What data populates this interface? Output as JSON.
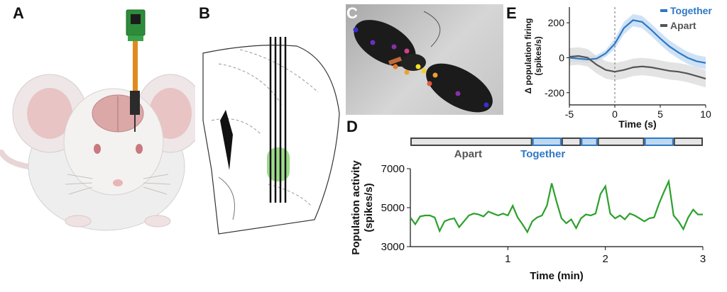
{
  "panels": {
    "a": "A",
    "b": "B",
    "c": "C",
    "d": "D",
    "e": "E"
  },
  "colors": {
    "together": "#2f78c4",
    "apart": "#555555",
    "trace": "#2ca02c",
    "together_fill": "#bfd8f2",
    "apart_fill": "#d9d9d9",
    "roi": "#7ccf63"
  },
  "chart_data": [
    {
      "id": "E",
      "type": "line",
      "xlabel": "Time (s)",
      "ylabel": "Δ population firing (spikes/s)",
      "ylabel_line1": "Δ population firing",
      "ylabel_line2": "(spikes/s)",
      "xlim": [
        -5,
        10
      ],
      "ylim": [
        -270,
        290
      ],
      "xticks": [
        -5,
        0,
        5,
        10
      ],
      "yticks": [
        -200,
        0,
        200
      ],
      "legend_position": "top-right",
      "x": [
        -5,
        -4,
        -3,
        -2,
        -1,
        0,
        1,
        2,
        3,
        4,
        5,
        6,
        7,
        8,
        9,
        10
      ],
      "series": [
        {
          "name": "Together",
          "color": "#2f78c4",
          "values": [
            0,
            -5,
            -10,
            -5,
            25,
            80,
            170,
            215,
            205,
            160,
            110,
            65,
            30,
            0,
            -20,
            -30
          ],
          "band_upper": [
            20,
            15,
            10,
            15,
            45,
            110,
            205,
            250,
            240,
            195,
            145,
            100,
            65,
            35,
            15,
            5
          ],
          "band_lower": [
            -20,
            -25,
            -30,
            -25,
            5,
            50,
            135,
            180,
            170,
            125,
            75,
            30,
            -5,
            -35,
            -55,
            -65
          ]
        },
        {
          "name": "Apart",
          "color": "#555555",
          "values": [
            5,
            10,
            0,
            -40,
            -70,
            -80,
            -70,
            -55,
            -50,
            -55,
            -65,
            -75,
            -80,
            -90,
            -105,
            -120
          ],
          "band_upper": [
            55,
            60,
            50,
            10,
            -20,
            -30,
            -20,
            -5,
            0,
            -5,
            -15,
            -25,
            -30,
            -40,
            -55,
            -70
          ],
          "band_lower": [
            -45,
            -40,
            -50,
            -90,
            -120,
            -130,
            -120,
            -105,
            -100,
            -105,
            -115,
            -125,
            -130,
            -140,
            -155,
            -170
          ]
        }
      ]
    },
    {
      "id": "D",
      "type": "line",
      "xlabel": "Time (min)",
      "ylabel": "Population activity (spikes/s)",
      "ylabel_line1": "Population activity",
      "ylabel_line2": "(spikes/s)",
      "xlim": [
        0,
        3
      ],
      "ylim": [
        3000,
        7000
      ],
      "xticks": [
        1,
        2,
        3
      ],
      "yticks": [
        3000,
        5000,
        7000
      ],
      "x": [
        0,
        0.05,
        0.1,
        0.15,
        0.2,
        0.25,
        0.3,
        0.35,
        0.4,
        0.45,
        0.5,
        0.55,
        0.6,
        0.65,
        0.7,
        0.75,
        0.8,
        0.85,
        0.9,
        0.95,
        1.0,
        1.05,
        1.1,
        1.15,
        1.2,
        1.25,
        1.3,
        1.35,
        1.4,
        1.45,
        1.5,
        1.55,
        1.6,
        1.65,
        1.7,
        1.75,
        1.8,
        1.85,
        1.9,
        1.95,
        2.0,
        2.05,
        2.1,
        2.15,
        2.2,
        2.25,
        2.3,
        2.35,
        2.4,
        2.45,
        2.5,
        2.55,
        2.6,
        2.65,
        2.7,
        2.75,
        2.8,
        2.85,
        2.9,
        2.95,
        3.0
      ],
      "values": [
        4500,
        4150,
        4550,
        4600,
        4600,
        4500,
        3800,
        4300,
        4400,
        4450,
        4000,
        4300,
        4600,
        4700,
        4650,
        4550,
        4800,
        4700,
        4600,
        4700,
        4600,
        5100,
        4500,
        4150,
        3750,
        4300,
        4500,
        4600,
        5100,
        6250,
        5300,
        4450,
        4200,
        4400,
        3950,
        4450,
        4650,
        4600,
        4700,
        5700,
        6100,
        4700,
        4450,
        4600,
        4400,
        4700,
        4600,
        4450,
        4300,
        4450,
        4500,
        5200,
        5800,
        6350,
        4600,
        4300,
        3900,
        4500,
        4900,
        4650,
        4650
      ],
      "epochs": [
        {
          "label": "Apart",
          "state": "apart",
          "start": 0.0,
          "end": 1.25
        },
        {
          "label": "",
          "state": "together",
          "start": 1.25,
          "end": 1.55
        },
        {
          "label": "",
          "state": "apart",
          "start": 1.55,
          "end": 1.75
        },
        {
          "label": "",
          "state": "together",
          "start": 1.75,
          "end": 1.92
        },
        {
          "label": "",
          "state": "apart",
          "start": 1.92,
          "end": 2.4
        },
        {
          "label": "",
          "state": "together",
          "start": 2.4,
          "end": 2.7
        },
        {
          "label": "",
          "state": "apart",
          "start": 2.7,
          "end": 3.0
        }
      ],
      "epoch_labels": {
        "apart": "Apart",
        "together": "Together"
      }
    }
  ]
}
